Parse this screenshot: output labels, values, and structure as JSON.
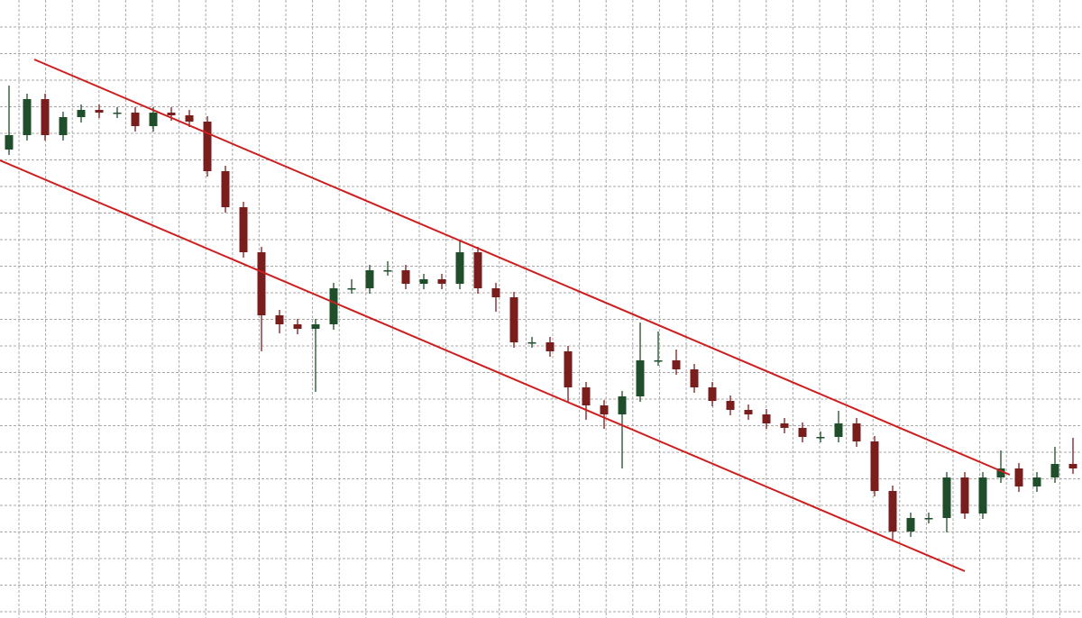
{
  "chart_data": {
    "type": "candlestick",
    "grid": true,
    "up_color": "#1f4f2a",
    "down_color": "#7a1d1d",
    "ylim": [
      0,
      686
    ],
    "xlim": [
      -0.5,
      59.5
    ],
    "open": [
      520,
      536,
      576,
      536,
      556,
      564,
      561,
      561,
      546,
      561,
      558,
      551,
      496,
      456,
      406,
      336,
      326,
      321,
      326,
      366,
      366,
      386,
      386,
      371,
      376,
      371,
      406,
      366,
      356,
      306,
      306,
      296,
      256,
      236,
      226,
      246,
      286,
      286,
      276,
      256,
      241,
      231,
      226,
      216,
      211,
      201,
      201,
      216,
      196,
      141,
      96,
      111,
      111,
      156,
      116,
      156,
      166,
      146,
      156,
      171
    ],
    "high": [
      591,
      582,
      582,
      562,
      570,
      570,
      567,
      567,
      567,
      567,
      564,
      557,
      502,
      462,
      412,
      342,
      332,
      332,
      372,
      376,
      392,
      396,
      392,
      382,
      382,
      418,
      412,
      372,
      362,
      312,
      312,
      302,
      262,
      242,
      252,
      328,
      318,
      298,
      282,
      262,
      247,
      237,
      232,
      222,
      217,
      207,
      230,
      222,
      202,
      147,
      117,
      117,
      162,
      162,
      162,
      186,
      172,
      162,
      190,
      200
    ],
    "low": [
      514,
      530,
      530,
      530,
      550,
      555,
      555,
      540,
      540,
      552,
      545,
      490,
      450,
      400,
      296,
      316,
      315,
      251,
      320,
      360,
      360,
      380,
      365,
      365,
      365,
      365,
      360,
      340,
      300,
      300,
      290,
      240,
      220,
      210,
      166,
      240,
      280,
      270,
      250,
      235,
      225,
      220,
      210,
      205,
      195,
      195,
      195,
      190,
      135,
      86,
      90,
      105,
      95,
      110,
      110,
      150,
      140,
      140,
      150,
      160
    ],
    "close": [
      536,
      576,
      536,
      556,
      564,
      561,
      561,
      546,
      561,
      558,
      551,
      496,
      456,
      406,
      336,
      326,
      321,
      326,
      366,
      366,
      386,
      386,
      371,
      376,
      371,
      406,
      366,
      356,
      306,
      306,
      296,
      256,
      236,
      226,
      246,
      286,
      286,
      276,
      256,
      241,
      231,
      226,
      216,
      211,
      201,
      201,
      216,
      196,
      141,
      96,
      111,
      111,
      156,
      116,
      156,
      166,
      146,
      156,
      171,
      166
    ],
    "channel": [
      {
        "x": [
          1.4,
          55.5
        ],
        "values": [
          620,
          159
        ],
        "color": "#cc1f1f"
      },
      {
        "x": [
          -0.5,
          53
        ],
        "values": [
          508,
          52
        ],
        "color": "#cc1f1f"
      }
    ]
  }
}
